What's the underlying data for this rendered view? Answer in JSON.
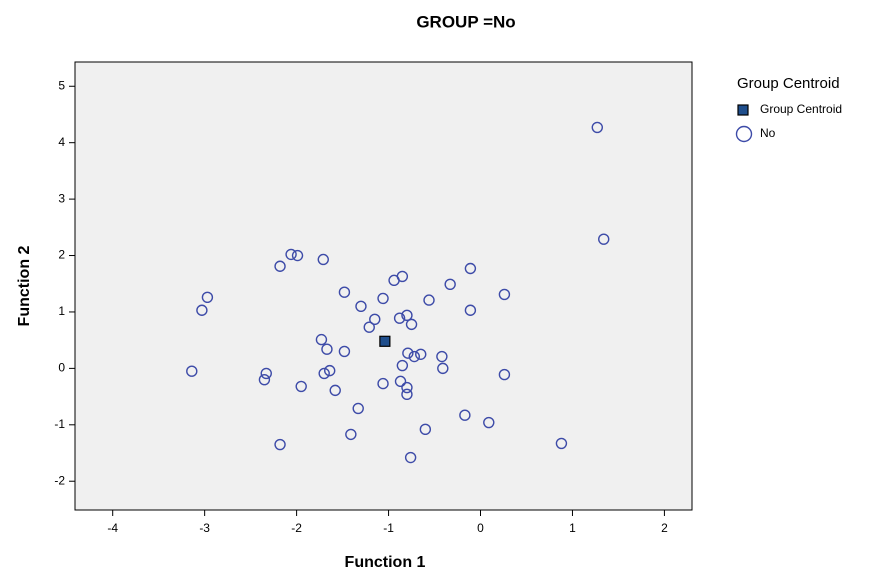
{
  "chart_data": {
    "type": "scatter",
    "title": "GROUP =No",
    "x_label": "Function 1",
    "y_label": "Function 2",
    "legend_title": "Group Centroid",
    "legend_position": "right",
    "xlim": [
      -4.41,
      2.3
    ],
    "ylim": [
      -2.51,
      5.43
    ],
    "xticks": [
      -4,
      -3,
      -2,
      -1,
      0,
      1,
      2
    ],
    "yticks": [
      -2,
      -1,
      0,
      1,
      2,
      3,
      4,
      5
    ],
    "series": [
      {
        "name": "Group Centroid",
        "color": "#1f4e8c",
        "marker": "square",
        "x": [
          -1.04
        ],
        "y": [
          0.48
        ]
      },
      {
        "name": "No",
        "color": "#3d4ba8",
        "marker": "circle",
        "x": [
          1.27,
          1.34,
          -2.06,
          -1.99,
          -2.18,
          -1.71,
          -0.85,
          -0.94,
          -0.11,
          -0.33,
          0.26,
          -2.97,
          -3.03,
          -1.48,
          -1.06,
          -1.3,
          -0.56,
          -0.11,
          -1.15,
          -0.88,
          -0.8,
          -1.21,
          -0.75,
          -1.73,
          -1.67,
          -1.48,
          -0.79,
          -0.72,
          -0.65,
          -0.42,
          -0.85,
          -0.41,
          -3.14,
          -2.33,
          -2.35,
          -1.64,
          -1.7,
          0.26,
          -1.95,
          -1.06,
          -0.87,
          -0.8,
          -1.58,
          -0.8,
          -1.33,
          -0.17,
          0.09,
          -0.6,
          -1.41,
          -2.18,
          0.88,
          -0.76
        ],
        "y": [
          4.27,
          2.29,
          2.02,
          2.0,
          1.81,
          1.93,
          1.63,
          1.56,
          1.77,
          1.49,
          1.31,
          1.26,
          1.03,
          1.35,
          1.24,
          1.1,
          1.21,
          1.03,
          0.87,
          0.89,
          0.94,
          0.73,
          0.78,
          0.51,
          0.34,
          0.3,
          0.27,
          0.21,
          0.25,
          0.21,
          0.05,
          0.0,
          -0.05,
          -0.09,
          -0.2,
          -0.04,
          -0.09,
          -0.11,
          -0.32,
          -0.27,
          -0.23,
          -0.34,
          -0.39,
          -0.46,
          -0.71,
          -0.83,
          -0.96,
          -1.08,
          -1.17,
          -1.35,
          -1.33,
          -1.58
        ]
      }
    ]
  }
}
